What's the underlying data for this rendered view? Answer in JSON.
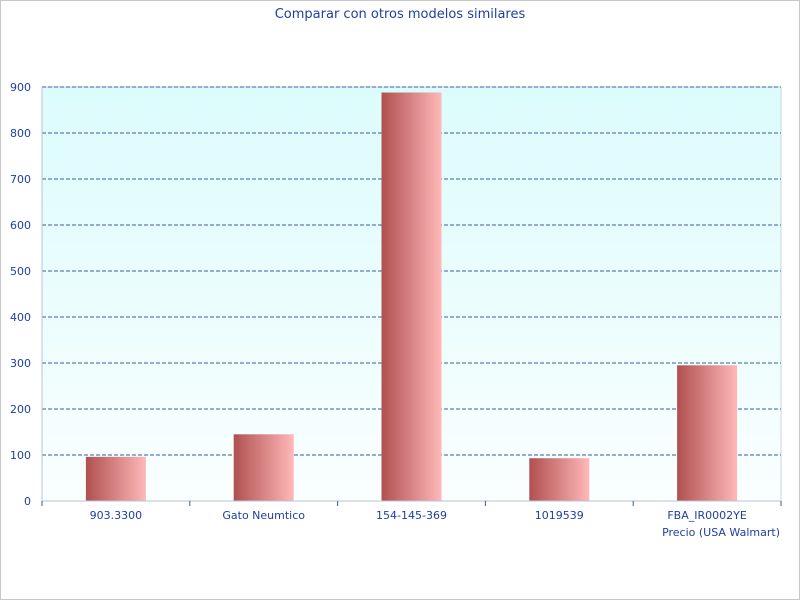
{
  "chart_data": {
    "type": "bar",
    "title": "Comparar con otros modelos similares",
    "xlabel": "Precio (USA Walmart)",
    "ylabel": "",
    "categories": [
      "903.3300",
      "Gato Neumtico",
      "154-145-369",
      "1019539",
      "FBA_IR0002YE"
    ],
    "values": [
      96,
      145,
      888,
      93,
      295
    ],
    "ylim": [
      0,
      900
    ],
    "yticks": [
      0,
      100,
      200,
      300,
      400,
      500,
      600,
      700,
      800,
      900
    ],
    "yticks_labels": [
      "0",
      "100",
      "200",
      "300",
      "400",
      "500",
      "600",
      "700",
      "800",
      "900"
    ],
    "grid": true,
    "legend": "none",
    "colors": {
      "bar_dark": "#b05050",
      "bar_light": "#ffb8b8",
      "plot_bg_top": "#dcfcfc",
      "plot_bg_bottom": "#fafefe",
      "grid": "#3a5aa8",
      "text": "#1f3fa0"
    }
  }
}
